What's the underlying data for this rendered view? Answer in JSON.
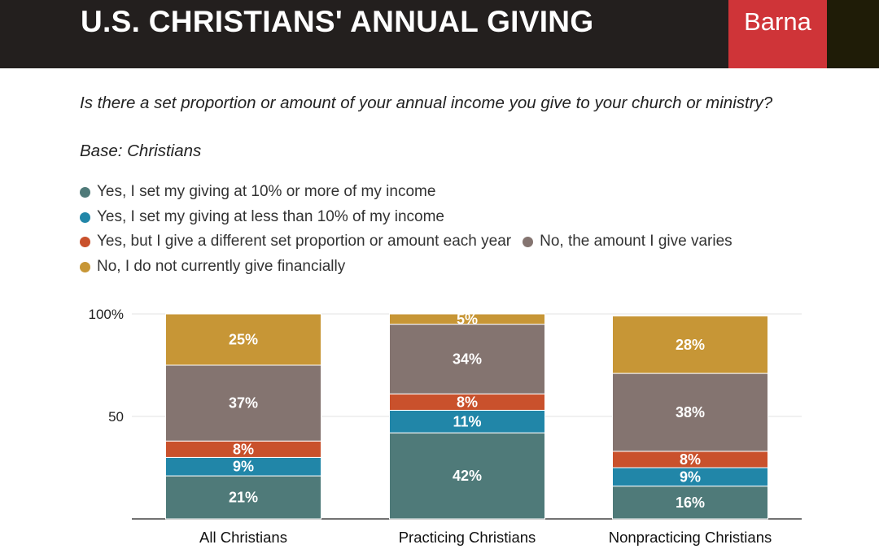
{
  "header": {
    "title": "U.S. CHRISTIANS' ANNUAL GIVING",
    "brand": "Barna"
  },
  "question": "Is there a set proportion or amount of your annual income you give to your church or ministry?",
  "base": "Base: Christians",
  "colors": {
    "header_bg": "#231f1e",
    "brand_bg": "#cf3438",
    "teal_dark": "#4f7a79",
    "blue": "#2186a8",
    "orange": "#c9512c",
    "gray": "#847470",
    "gold": "#c79636"
  },
  "chart_data": {
    "type": "bar",
    "stacked": true,
    "categories": [
      "All Christians",
      "Practicing Christians",
      "Nonpracticing Christians"
    ],
    "series": [
      {
        "name": "Yes, I set my giving at 10% or more of my income",
        "color": "#4f7a79",
        "values": [
          21,
          42,
          16
        ]
      },
      {
        "name": "Yes, I set my giving at less than 10% of my income",
        "color": "#2186a8",
        "values": [
          9,
          11,
          9
        ]
      },
      {
        "name": "Yes, but I give a different set proportion or amount each year",
        "color": "#c9512c",
        "values": [
          8,
          8,
          8
        ]
      },
      {
        "name": "No, the amount I give varies",
        "color": "#847470",
        "values": [
          37,
          34,
          38
        ]
      },
      {
        "name": "No, I do not currently give financially",
        "color": "#c79636",
        "values": [
          25,
          5,
          28
        ]
      }
    ],
    "data_labels": [
      [
        "21%",
        "42%",
        "16%"
      ],
      [
        "9%",
        "11%",
        "9%"
      ],
      [
        "8%",
        "8%",
        "8%"
      ],
      [
        "37%",
        "34%",
        "38%"
      ],
      [
        "25%",
        "5%",
        "28%"
      ]
    ],
    "yticks": [
      {
        "value": 50,
        "label": "50"
      },
      {
        "value": 100,
        "label": "100%"
      }
    ],
    "ylim": [
      0,
      100
    ],
    "legend_position": "top"
  }
}
